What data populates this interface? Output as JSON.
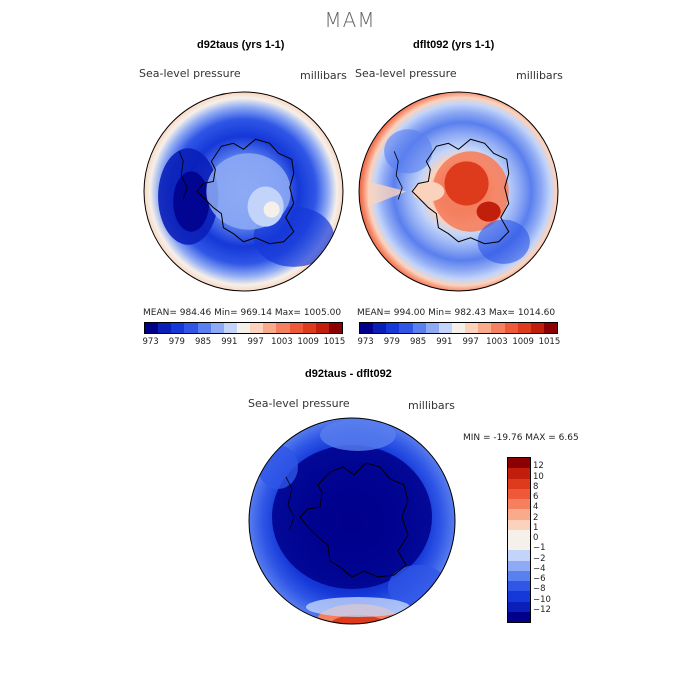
{
  "page": {
    "season_title": "MAM"
  },
  "map_left": {
    "title": "d92taus (yrs 1-1)",
    "field_label": "Sea-level pressure",
    "units": "millibars",
    "stats": "MEAN= 984.46   Min= 969.14   Max= 1005.00"
  },
  "map_right": {
    "title": "dflt092 (yrs 1-1)",
    "field_label": "Sea-level pressure",
    "units": "millibars",
    "stats": "MEAN= 994.00   Min= 982.43   Max= 1014.60"
  },
  "map_diff": {
    "title": "d92taus - dflt092",
    "field_label": "Sea-level pressure",
    "units": "millibars",
    "stats": "MIN = -19.76 MAX =   6.65"
  },
  "colorbar_top": {
    "ticks": [
      "973",
      "979",
      "985",
      "991",
      "997",
      "1003",
      "1009",
      "1015"
    ],
    "colors": [
      "#00008b",
      "#0a1fb8",
      "#1538d8",
      "#2f56e6",
      "#5a7fee",
      "#8eaaf4",
      "#c2d4fa",
      "#f5f0ea",
      "#fbd3bd",
      "#f8aa8a",
      "#f4805f",
      "#ee5a39",
      "#de3a1c",
      "#c21e0c",
      "#8b0000"
    ]
  },
  "colorbar_diff": {
    "ticks": [
      "12",
      "10",
      "8",
      "6",
      "4",
      "2",
      "1",
      "0",
      "−1",
      "−2",
      "−4",
      "−6",
      "−8",
      "−10",
      "−12"
    ],
    "colors": [
      "#8b0000",
      "#c21e0c",
      "#de3a1c",
      "#ee5a39",
      "#f4805f",
      "#f8aa8a",
      "#fbd3bd",
      "#f5f0ea",
      "#f5f0ea",
      "#c2d4fa",
      "#8eaaf4",
      "#5a7fee",
      "#2f56e6",
      "#1538d8",
      "#0a1fb8",
      "#00008b"
    ]
  }
}
